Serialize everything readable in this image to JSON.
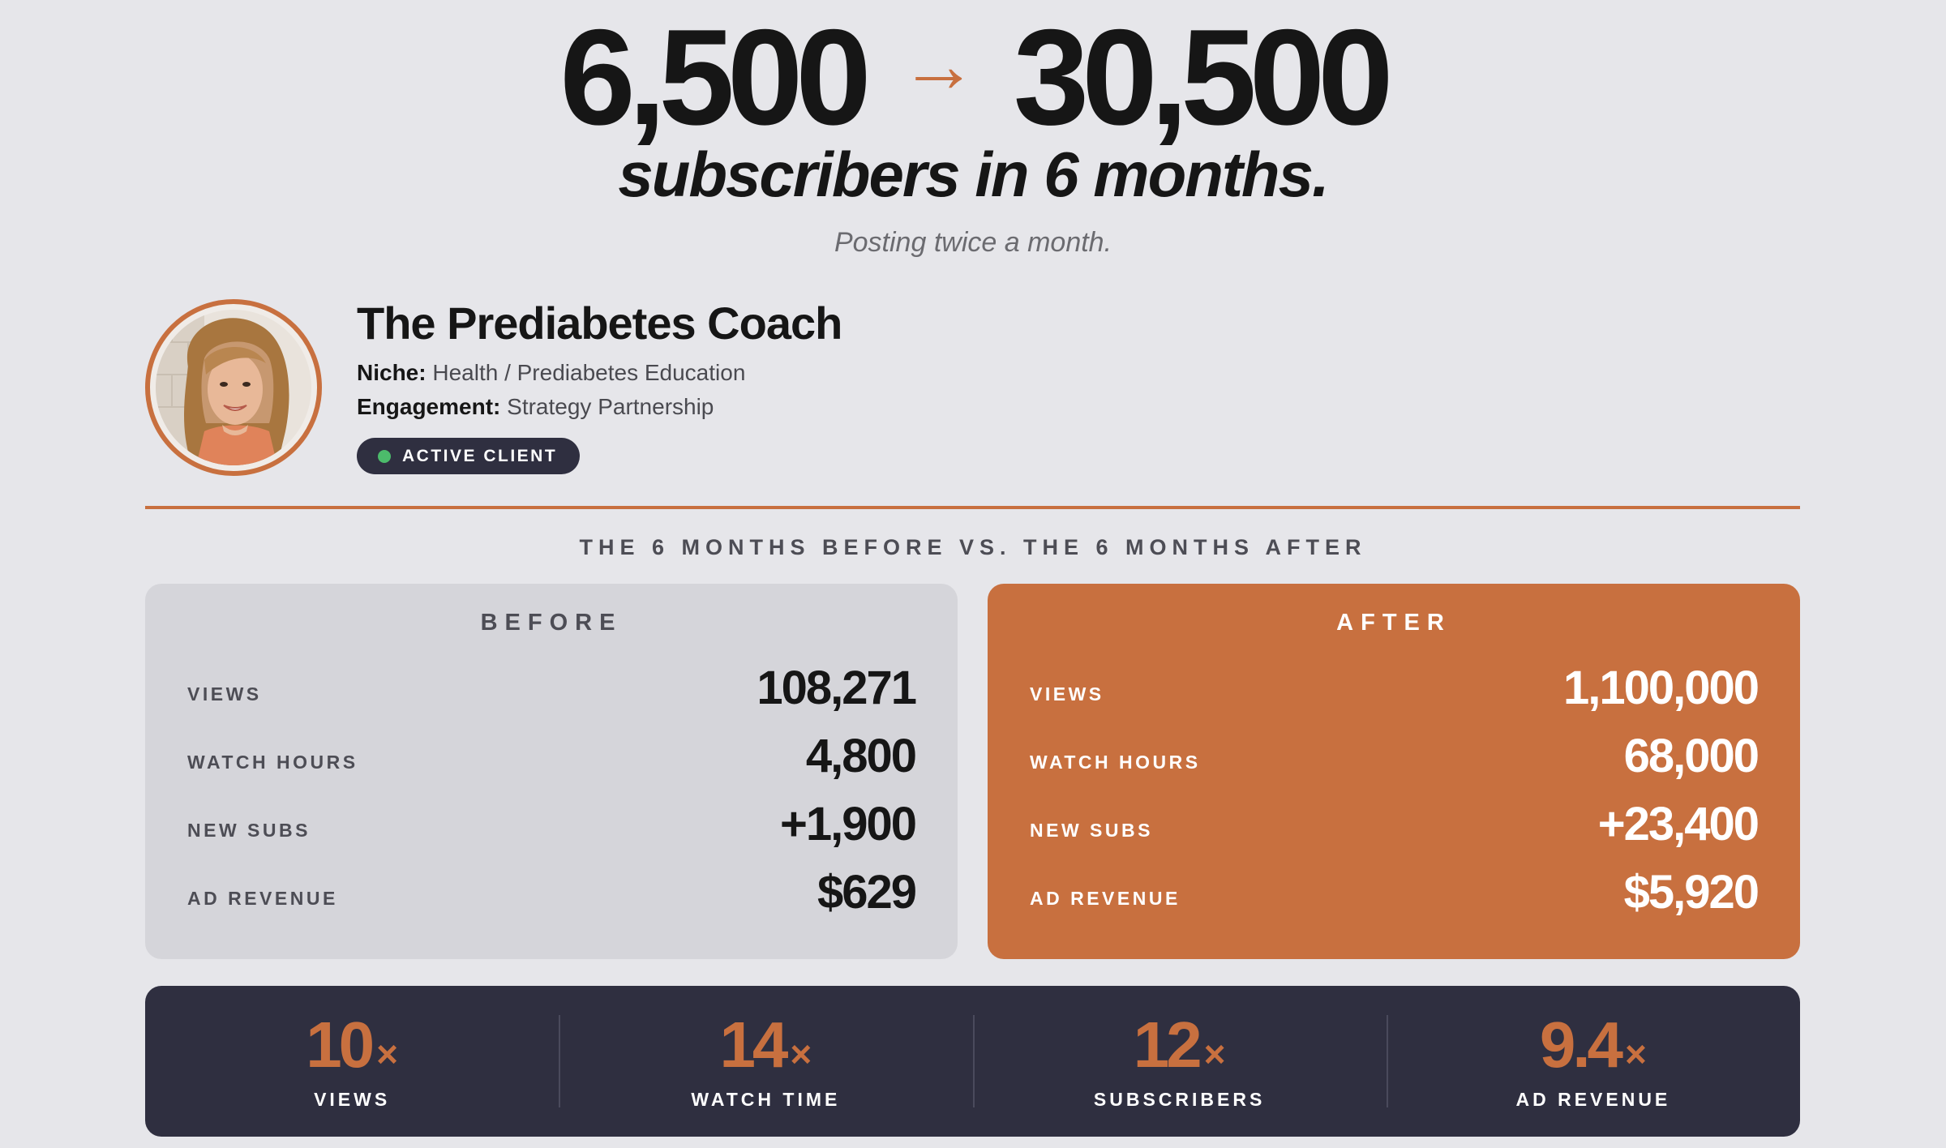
{
  "hero": {
    "from": "6,500",
    "arrow": "→",
    "to": "30,500",
    "headline": "subscribers in 6 months.",
    "subline": "Posting twice a month."
  },
  "client": {
    "name": "The Prediabetes Coach",
    "niche_label": "Niche:",
    "niche_value": "Health / Prediabetes Education",
    "engagement_label": "Engagement:",
    "engagement_value": "Strategy Partnership",
    "status": "ACTIVE CLIENT",
    "status_color": "#4cbb6b"
  },
  "comparison": {
    "title": "THE 6 MONTHS BEFORE VS. THE 6 MONTHS AFTER",
    "before": {
      "title": "BEFORE",
      "rows": [
        {
          "label": "VIEWS",
          "value": "108,271"
        },
        {
          "label": "WATCH HOURS",
          "value": "4,800"
        },
        {
          "label": "NEW SUBS",
          "value": "+1,900"
        },
        {
          "label": "AD REVENUE",
          "value": "$629"
        }
      ]
    },
    "after": {
      "title": "AFTER",
      "rows": [
        {
          "label": "VIEWS",
          "value": "1,100,000"
        },
        {
          "label": "WATCH HOURS",
          "value": "68,000"
        },
        {
          "label": "NEW SUBS",
          "value": "+23,400"
        },
        {
          "label": "AD REVENUE",
          "value": "$5,920"
        }
      ]
    }
  },
  "multipliers": [
    {
      "value": "10",
      "suffix": "×",
      "label": "VIEWS"
    },
    {
      "value": "14",
      "suffix": "×",
      "label": "WATCH TIME"
    },
    {
      "value": "12",
      "suffix": "×",
      "label": "SUBSCRIBERS"
    },
    {
      "value": "9.4",
      "suffix": "×",
      "label": "AD REVENUE"
    }
  ],
  "colors": {
    "accent": "#c8703f",
    "dark": "#2f2f40",
    "background": "#e6e6ea",
    "before_panel": "#d5d5da"
  }
}
